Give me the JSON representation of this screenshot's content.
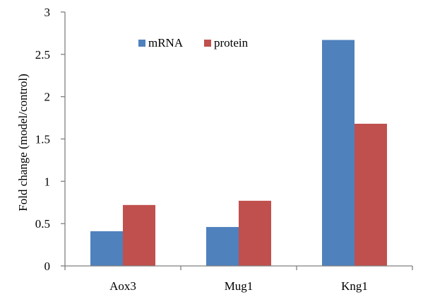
{
  "chart_data": {
    "type": "bar",
    "title": "",
    "xlabel": "",
    "ylabel": "Fold change (model/control)",
    "categories": [
      "Aox3",
      "Mug1",
      "Kng1"
    ],
    "series": [
      {
        "name": "mRNA",
        "values": [
          0.41,
          0.46,
          2.67
        ],
        "color": "#4f81bd"
      },
      {
        "name": "protein",
        "values": [
          0.72,
          0.77,
          1.68
        ],
        "color": "#c0504d"
      }
    ],
    "ylim": [
      0,
      3
    ],
    "yticks": [
      {
        "value": 0,
        "label": "0"
      },
      {
        "value": 0.5,
        "label": "0.5"
      },
      {
        "value": 1,
        "label": "1"
      },
      {
        "value": 1.5,
        "label": "1.5"
      },
      {
        "value": 2,
        "label": "2"
      },
      {
        "value": 2.5,
        "label": "2.5"
      },
      {
        "value": 3,
        "label": "3"
      }
    ],
    "grid": false,
    "legend": {
      "placement": "top-center",
      "orientation": "horizontal"
    }
  }
}
